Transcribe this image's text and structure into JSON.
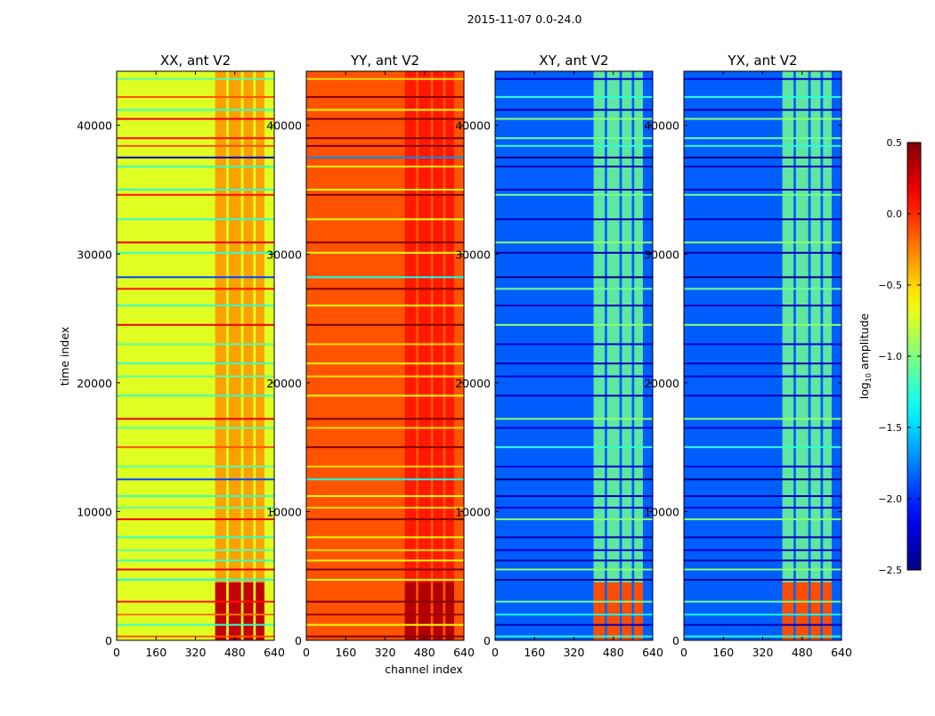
{
  "chart_data": {
    "type": "heatmap",
    "title": "2015-11-07 0.0-24.0",
    "xlabel": "channel index",
    "ylabel": "time index",
    "xlim": [
      0,
      640
    ],
    "ylim": [
      0,
      44200
    ],
    "xticks": [
      0,
      160,
      320,
      480,
      640
    ],
    "yticks": [
      0,
      10000,
      20000,
      30000,
      40000
    ],
    "colorbar": {
      "label_main": "log",
      "label_sub": "10",
      "label_rest": " amplitude",
      "range": [
        -2.5,
        0.5
      ],
      "ticks": [
        "0.5",
        "0.0",
        "−0.5",
        "−1.0",
        "−1.5",
        "−2.0",
        "−2.5"
      ],
      "tick_values": [
        0.5,
        0.0,
        -0.5,
        -1.0,
        -1.5,
        -2.0,
        -2.5
      ],
      "colormap": "jet"
    },
    "panels": [
      {
        "title": "XX, ant V2",
        "base": -0.72,
        "band": -0.3,
        "low_patch": 0.3
      },
      {
        "title": "YY, ant V2",
        "base": -0.12,
        "band": 0.08,
        "low_patch": 0.35
      },
      {
        "title": "XY, ant V2",
        "base": -1.85,
        "band": -1.05,
        "low_patch": -0.1
      },
      {
        "title": "YX, ant V2",
        "base": -1.85,
        "band": -1.05,
        "low_patch": -0.1
      }
    ],
    "band_channels": [
      [
        400,
        445
      ],
      [
        455,
        505
      ],
      [
        515,
        555
      ],
      [
        565,
        600
      ]
    ],
    "low_patch_time": [
      0,
      4500
    ],
    "stripes": [
      {
        "t": 300,
        "d": 0.6
      },
      {
        "t": 1200,
        "d": -0.5
      },
      {
        "t": 2000,
        "d": 0.5
      },
      {
        "t": 3000,
        "d": 0.8
      },
      {
        "t": 4700,
        "d": -0.6
      },
      {
        "t": 5500,
        "d": 0.9
      },
      {
        "t": 6200,
        "d": -0.5
      },
      {
        "t": 7000,
        "d": -0.4
      },
      {
        "t": 8000,
        "d": -0.5
      },
      {
        "t": 9400,
        "d": 0.9
      },
      {
        "t": 10300,
        "d": -0.4
      },
      {
        "t": 11200,
        "d": -0.5
      },
      {
        "t": 12500,
        "d": -1.2
      },
      {
        "t": 13500,
        "d": -0.4
      },
      {
        "t": 15000,
        "d": 0.6
      },
      {
        "t": 16500,
        "d": -0.4
      },
      {
        "t": 17200,
        "d": 0.9
      },
      {
        "t": 19000,
        "d": -0.5
      },
      {
        "t": 20500,
        "d": -0.4
      },
      {
        "t": 21500,
        "d": -0.5
      },
      {
        "t": 23000,
        "d": -0.4
      },
      {
        "t": 24500,
        "d": 0.9
      },
      {
        "t": 26000,
        "d": -0.5
      },
      {
        "t": 27300,
        "d": 0.8
      },
      {
        "t": 28200,
        "d": -1.2
      },
      {
        "t": 30100,
        "d": -0.5
      },
      {
        "t": 30900,
        "d": 0.9
      },
      {
        "t": 32700,
        "d": -0.5
      },
      {
        "t": 34600,
        "d": 0.8
      },
      {
        "t": 35000,
        "d": -0.5
      },
      {
        "t": 36800,
        "d": -0.5
      },
      {
        "t": 37500,
        "d": -1.6
      },
      {
        "t": 38400,
        "d": 0.6
      },
      {
        "t": 39000,
        "d": 0.8
      },
      {
        "t": 40500,
        "d": 0.9
      },
      {
        "t": 41200,
        "d": -0.5
      },
      {
        "t": 42200,
        "d": 0.6
      },
      {
        "t": 43600,
        "d": -0.4
      }
    ]
  }
}
